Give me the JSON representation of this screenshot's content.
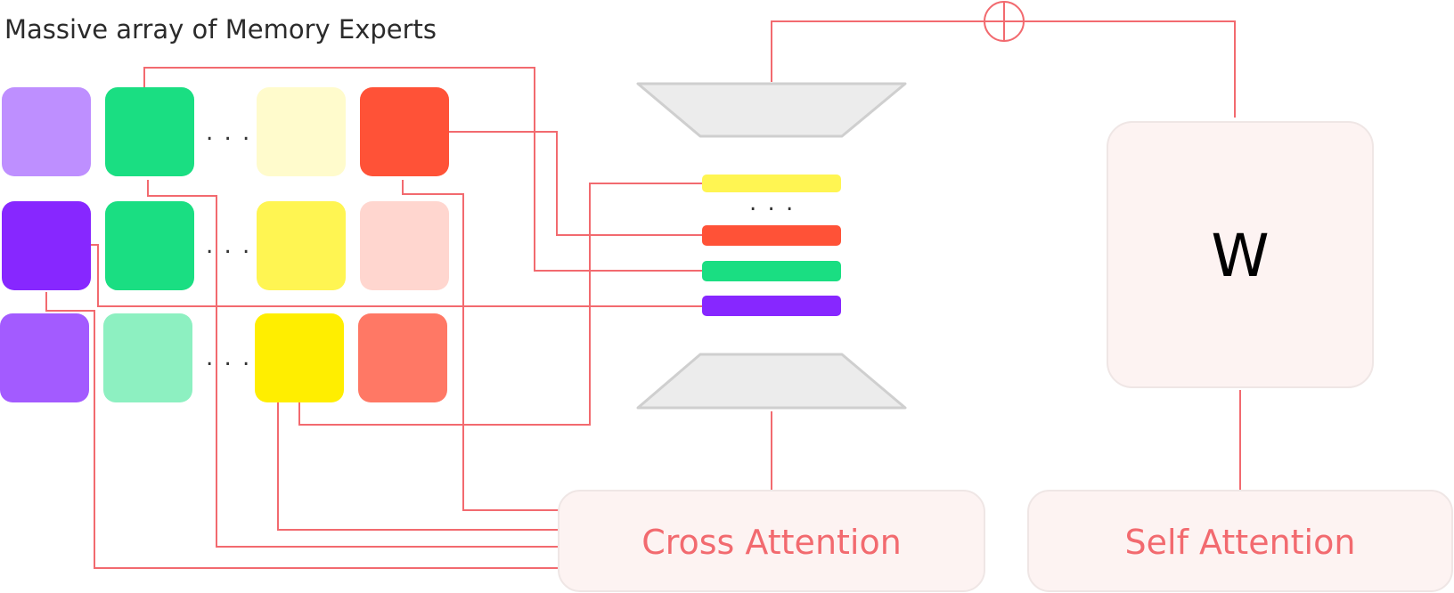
{
  "title": "Massive array of Memory Experts",
  "ellipsis": ". . .",
  "cross_attention_label": "Cross Attention",
  "self_attention_label": "Self Attention",
  "weights_label": "W",
  "colors": {
    "wire": "#f26a6f",
    "panel_fill": "#fdf3f2",
    "trapezoid_fill": "#ececec",
    "row1": [
      "#be8fff",
      "#1ade82",
      "#fffbcc",
      "#ff5237"
    ],
    "row2": [
      "#8727ff",
      "#1ade82",
      "#fff552",
      "#ffd6cf"
    ],
    "row3": [
      "#a35bff",
      "#8df0c1",
      "#ffee00",
      "#ff7865"
    ],
    "bars": [
      "#fff552",
      "#ff5237",
      "#1ade82",
      "#8727ff"
    ]
  }
}
